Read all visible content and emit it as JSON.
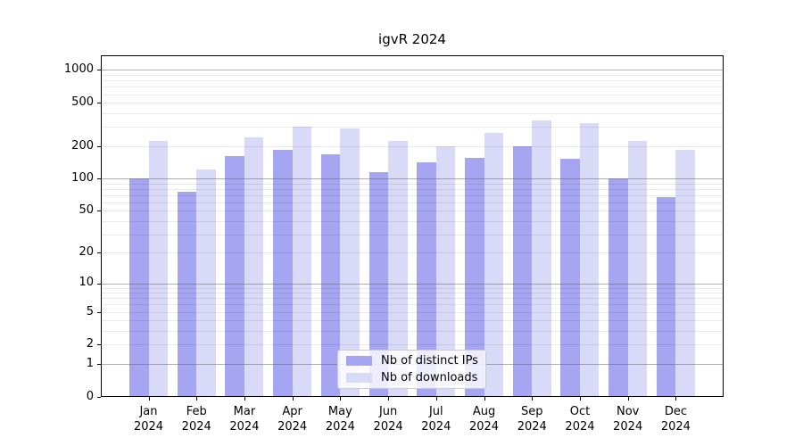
{
  "chart_data": {
    "type": "bar",
    "title": "igvR 2024",
    "categories": [
      "Jan 2024",
      "Feb 2024",
      "Mar 2024",
      "Apr 2024",
      "May 2024",
      "Jun 2024",
      "Jul 2024",
      "Aug 2024",
      "Sep 2024",
      "Oct 2024",
      "Nov 2024",
      "Dec 2024"
    ],
    "series": [
      {
        "name": "Nb of distinct IPs",
        "color": "#a5a5f2",
        "values": [
          100,
          75,
          160,
          185,
          166,
          115,
          141,
          154,
          197,
          151,
          100,
          67
        ]
      },
      {
        "name": "Nb of downloads",
        "color": "#d9d9f8",
        "values": [
          220,
          120,
          240,
          298,
          288,
          220,
          198,
          265,
          345,
          326,
          221,
          184
        ]
      }
    ],
    "yscale": "log10(value+1)",
    "yticks": [
      1000,
      500,
      200,
      100,
      50,
      20,
      10,
      5,
      2,
      1,
      0
    ],
    "ylim": [
      0,
      1400
    ],
    "grid": "horizontal major and minor log gridlines",
    "legend_position": "lower center inside plot"
  },
  "colors": {
    "background": "#ffffff",
    "bar_distinct_ips": "#a5a5f2",
    "bar_downloads": "#d9d9f8",
    "major_gridline": "#b1b1b1",
    "minor_gridline": "#e9e9e9",
    "axis": "#000000",
    "legend_border": "#cccccc"
  }
}
